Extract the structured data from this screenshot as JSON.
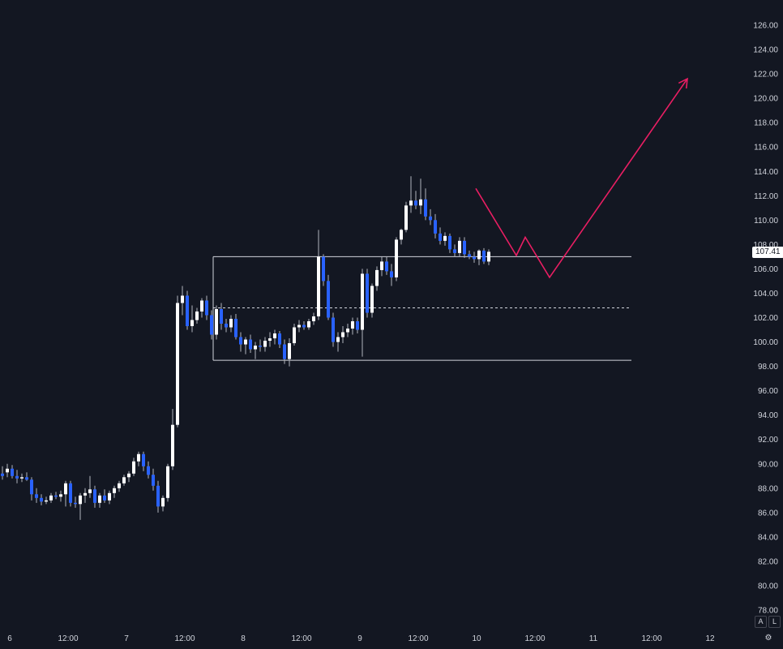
{
  "chart_data": {
    "type": "candlestick",
    "y_axis": {
      "ticks": [
        "126.00",
        "124.00",
        "122.00",
        "120.00",
        "118.00",
        "116.00",
        "114.00",
        "112.00",
        "110.00",
        "108.00",
        "106.00",
        "104.00",
        "102.00",
        "100.00",
        "98.00",
        "96.00",
        "94.00",
        "92.00",
        "90.00",
        "88.00",
        "86.00",
        "84.00",
        "82.00",
        "80.00",
        "78.00"
      ],
      "range": [
        77,
        127.5
      ]
    },
    "x_axis": {
      "ticks": [
        "6",
        "12:00",
        "7",
        "12:00",
        "8",
        "12:00",
        "9",
        "12:00",
        "10",
        "12:00",
        "11",
        "12:00",
        "12"
      ]
    },
    "last_price": "107.41",
    "colors": {
      "up": "#ffffff",
      "down": "#2962ff",
      "background": "#131722",
      "drawing": "#e91e63",
      "levels": "#d1d4dc"
    },
    "levels": {
      "range_top": 107.0,
      "range_mid": 102.8,
      "range_bottom": 98.5
    },
    "candles": [
      {
        "o": 89.2,
        "h": 89.8,
        "l": 88.7,
        "c": 89.0
      },
      {
        "o": 89.3,
        "h": 90.0,
        "l": 88.9,
        "c": 89.6
      },
      {
        "o": 89.6,
        "h": 89.9,
        "l": 88.8,
        "c": 89.0
      },
      {
        "o": 89.0,
        "h": 89.5,
        "l": 88.4,
        "c": 88.8
      },
      {
        "o": 88.8,
        "h": 89.2,
        "l": 88.5,
        "c": 88.9
      },
      {
        "o": 88.9,
        "h": 89.3,
        "l": 88.6,
        "c": 88.7
      },
      {
        "o": 88.7,
        "h": 88.9,
        "l": 87.0,
        "c": 87.5
      },
      {
        "o": 87.5,
        "h": 88.0,
        "l": 86.8,
        "c": 87.2
      },
      {
        "o": 87.2,
        "h": 87.5,
        "l": 86.6,
        "c": 86.9
      },
      {
        "o": 86.9,
        "h": 87.3,
        "l": 86.7,
        "c": 87.0
      },
      {
        "o": 87.0,
        "h": 87.6,
        "l": 86.8,
        "c": 87.4
      },
      {
        "o": 87.4,
        "h": 87.7,
        "l": 87.1,
        "c": 87.3
      },
      {
        "o": 87.3,
        "h": 87.8,
        "l": 86.9,
        "c": 87.5
      },
      {
        "o": 87.5,
        "h": 88.6,
        "l": 86.5,
        "c": 88.4
      },
      {
        "o": 88.4,
        "h": 88.6,
        "l": 86.5,
        "c": 86.8
      },
      {
        "o": 86.8,
        "h": 87.3,
        "l": 86.4,
        "c": 86.7
      },
      {
        "o": 86.7,
        "h": 87.6,
        "l": 85.4,
        "c": 87.4
      },
      {
        "o": 87.4,
        "h": 88.0,
        "l": 86.8,
        "c": 87.6
      },
      {
        "o": 87.6,
        "h": 89.0,
        "l": 87.2,
        "c": 87.9
      },
      {
        "o": 87.9,
        "h": 88.2,
        "l": 86.4,
        "c": 86.8
      },
      {
        "o": 86.8,
        "h": 87.6,
        "l": 86.4,
        "c": 87.4
      },
      {
        "o": 87.4,
        "h": 87.9,
        "l": 86.8,
        "c": 87.0
      },
      {
        "o": 87.0,
        "h": 87.8,
        "l": 86.7,
        "c": 87.6
      },
      {
        "o": 87.6,
        "h": 88.2,
        "l": 87.2,
        "c": 88.0
      },
      {
        "o": 88.0,
        "h": 88.6,
        "l": 87.7,
        "c": 88.4
      },
      {
        "o": 88.4,
        "h": 89.1,
        "l": 88.2,
        "c": 88.9
      },
      {
        "o": 88.9,
        "h": 89.4,
        "l": 88.5,
        "c": 89.2
      },
      {
        "o": 89.2,
        "h": 90.5,
        "l": 89.0,
        "c": 90.2
      },
      {
        "o": 90.2,
        "h": 91.0,
        "l": 89.8,
        "c": 90.8
      },
      {
        "o": 90.8,
        "h": 91.0,
        "l": 89.4,
        "c": 89.8
      },
      {
        "o": 89.8,
        "h": 90.2,
        "l": 88.8,
        "c": 89.1
      },
      {
        "o": 89.1,
        "h": 89.6,
        "l": 87.8,
        "c": 88.2
      },
      {
        "o": 88.2,
        "h": 88.6,
        "l": 86.0,
        "c": 86.5
      },
      {
        "o": 86.5,
        "h": 87.4,
        "l": 86.1,
        "c": 87.2
      },
      {
        "o": 87.2,
        "h": 90.0,
        "l": 86.9,
        "c": 89.8
      },
      {
        "o": 89.8,
        "h": 94.5,
        "l": 89.5,
        "c": 93.2
      },
      {
        "o": 93.2,
        "h": 103.8,
        "l": 93.0,
        "c": 103.2
      },
      {
        "o": 103.2,
        "h": 104.6,
        "l": 102.2,
        "c": 103.8
      },
      {
        "o": 103.8,
        "h": 104.2,
        "l": 101.0,
        "c": 101.3
      },
      {
        "o": 101.3,
        "h": 103.0,
        "l": 100.8,
        "c": 101.8
      },
      {
        "o": 101.8,
        "h": 102.8,
        "l": 101.5,
        "c": 102.5
      },
      {
        "o": 102.5,
        "h": 103.6,
        "l": 102.0,
        "c": 103.4
      },
      {
        "o": 103.4,
        "h": 103.8,
        "l": 101.8,
        "c": 102.2
      },
      {
        "o": 102.2,
        "h": 102.6,
        "l": 100.2,
        "c": 100.6
      },
      {
        "o": 100.6,
        "h": 103.0,
        "l": 100.2,
        "c": 102.7
      },
      {
        "o": 102.7,
        "h": 103.2,
        "l": 101.0,
        "c": 101.5
      },
      {
        "o": 101.5,
        "h": 101.9,
        "l": 100.8,
        "c": 101.2
      },
      {
        "o": 101.2,
        "h": 102.2,
        "l": 100.8,
        "c": 101.9
      },
      {
        "o": 101.9,
        "h": 102.3,
        "l": 100.2,
        "c": 100.4
      },
      {
        "o": 100.4,
        "h": 100.8,
        "l": 99.2,
        "c": 99.8
      },
      {
        "o": 99.8,
        "h": 100.4,
        "l": 99.0,
        "c": 100.2
      },
      {
        "o": 100.2,
        "h": 100.6,
        "l": 99.1,
        "c": 99.4
      },
      {
        "o": 99.4,
        "h": 100.0,
        "l": 98.6,
        "c": 99.7
      },
      {
        "o": 99.7,
        "h": 100.2,
        "l": 99.2,
        "c": 99.6
      },
      {
        "o": 99.6,
        "h": 100.4,
        "l": 99.2,
        "c": 100.1
      },
      {
        "o": 100.1,
        "h": 100.8,
        "l": 99.6,
        "c": 100.3
      },
      {
        "o": 100.3,
        "h": 101.0,
        "l": 99.8,
        "c": 100.7
      },
      {
        "o": 100.7,
        "h": 100.9,
        "l": 99.5,
        "c": 99.8
      },
      {
        "o": 99.8,
        "h": 100.2,
        "l": 98.2,
        "c": 98.6
      },
      {
        "o": 98.6,
        "h": 100.3,
        "l": 98.0,
        "c": 99.9
      },
      {
        "o": 99.9,
        "h": 101.5,
        "l": 99.7,
        "c": 101.2
      },
      {
        "o": 101.2,
        "h": 101.8,
        "l": 100.8,
        "c": 101.4
      },
      {
        "o": 101.4,
        "h": 101.7,
        "l": 101.0,
        "c": 101.2
      },
      {
        "o": 101.2,
        "h": 101.9,
        "l": 101.0,
        "c": 101.7
      },
      {
        "o": 101.7,
        "h": 102.4,
        "l": 101.4,
        "c": 102.1
      },
      {
        "o": 102.1,
        "h": 109.2,
        "l": 101.8,
        "c": 107.0
      },
      {
        "o": 107.0,
        "h": 107.2,
        "l": 104.6,
        "c": 105.0
      },
      {
        "o": 105.0,
        "h": 105.5,
        "l": 101.8,
        "c": 102.0
      },
      {
        "o": 102.0,
        "h": 102.4,
        "l": 99.6,
        "c": 100.0
      },
      {
        "o": 100.0,
        "h": 100.8,
        "l": 99.2,
        "c": 100.4
      },
      {
        "o": 100.4,
        "h": 101.3,
        "l": 99.9,
        "c": 100.8
      },
      {
        "o": 100.8,
        "h": 101.5,
        "l": 100.4,
        "c": 101.1
      },
      {
        "o": 101.1,
        "h": 102.0,
        "l": 100.6,
        "c": 101.7
      },
      {
        "o": 101.7,
        "h": 102.0,
        "l": 100.7,
        "c": 101.0
      },
      {
        "o": 101.0,
        "h": 106.0,
        "l": 98.8,
        "c": 105.6
      },
      {
        "o": 105.6,
        "h": 106.0,
        "l": 102.0,
        "c": 102.4
      },
      {
        "o": 102.4,
        "h": 104.8,
        "l": 102.0,
        "c": 104.6
      },
      {
        "o": 104.6,
        "h": 106.2,
        "l": 104.2,
        "c": 105.9
      },
      {
        "o": 105.9,
        "h": 107.0,
        "l": 105.4,
        "c": 106.6
      },
      {
        "o": 106.6,
        "h": 107.0,
        "l": 105.5,
        "c": 105.8
      },
      {
        "o": 105.8,
        "h": 106.4,
        "l": 104.6,
        "c": 105.3
      },
      {
        "o": 105.3,
        "h": 108.6,
        "l": 105.0,
        "c": 108.4
      },
      {
        "o": 108.4,
        "h": 109.3,
        "l": 108.0,
        "c": 109.2
      },
      {
        "o": 109.2,
        "h": 111.5,
        "l": 109.0,
        "c": 111.2
      },
      {
        "o": 111.2,
        "h": 113.6,
        "l": 110.6,
        "c": 111.6
      },
      {
        "o": 111.6,
        "h": 112.4,
        "l": 110.9,
        "c": 111.2
      },
      {
        "o": 111.2,
        "h": 113.4,
        "l": 110.5,
        "c": 111.7
      },
      {
        "o": 111.7,
        "h": 112.6,
        "l": 110.0,
        "c": 110.3
      },
      {
        "o": 110.3,
        "h": 110.9,
        "l": 109.6,
        "c": 110.0
      },
      {
        "o": 110.0,
        "h": 110.5,
        "l": 108.5,
        "c": 108.9
      },
      {
        "o": 108.9,
        "h": 109.4,
        "l": 108.0,
        "c": 108.3
      },
      {
        "o": 108.3,
        "h": 109.0,
        "l": 107.9,
        "c": 108.7
      },
      {
        "o": 108.7,
        "h": 108.9,
        "l": 107.3,
        "c": 107.6
      },
      {
        "o": 107.6,
        "h": 108.0,
        "l": 107.0,
        "c": 107.3
      },
      {
        "o": 107.3,
        "h": 108.6,
        "l": 107.0,
        "c": 108.3
      },
      {
        "o": 108.3,
        "h": 108.6,
        "l": 106.9,
        "c": 107.2
      },
      {
        "o": 107.2,
        "h": 107.5,
        "l": 106.8,
        "c": 107.0
      },
      {
        "o": 107.0,
        "h": 107.4,
        "l": 106.5,
        "c": 106.8
      },
      {
        "o": 106.8,
        "h": 107.6,
        "l": 106.3,
        "c": 107.5
      },
      {
        "o": 107.5,
        "h": 107.7,
        "l": 106.4,
        "c": 106.6
      },
      {
        "o": 106.6,
        "h": 107.6,
        "l": 106.3,
        "c": 107.4
      }
    ],
    "annotations": [
      {
        "type": "polyline",
        "points": [
          [
            587,
            112.6
          ],
          [
            637,
            107.1
          ],
          [
            648,
            108.6
          ],
          [
            678,
            105.3
          ],
          [
            848,
            121.6
          ]
        ],
        "arrow_end": true
      }
    ]
  }
}
